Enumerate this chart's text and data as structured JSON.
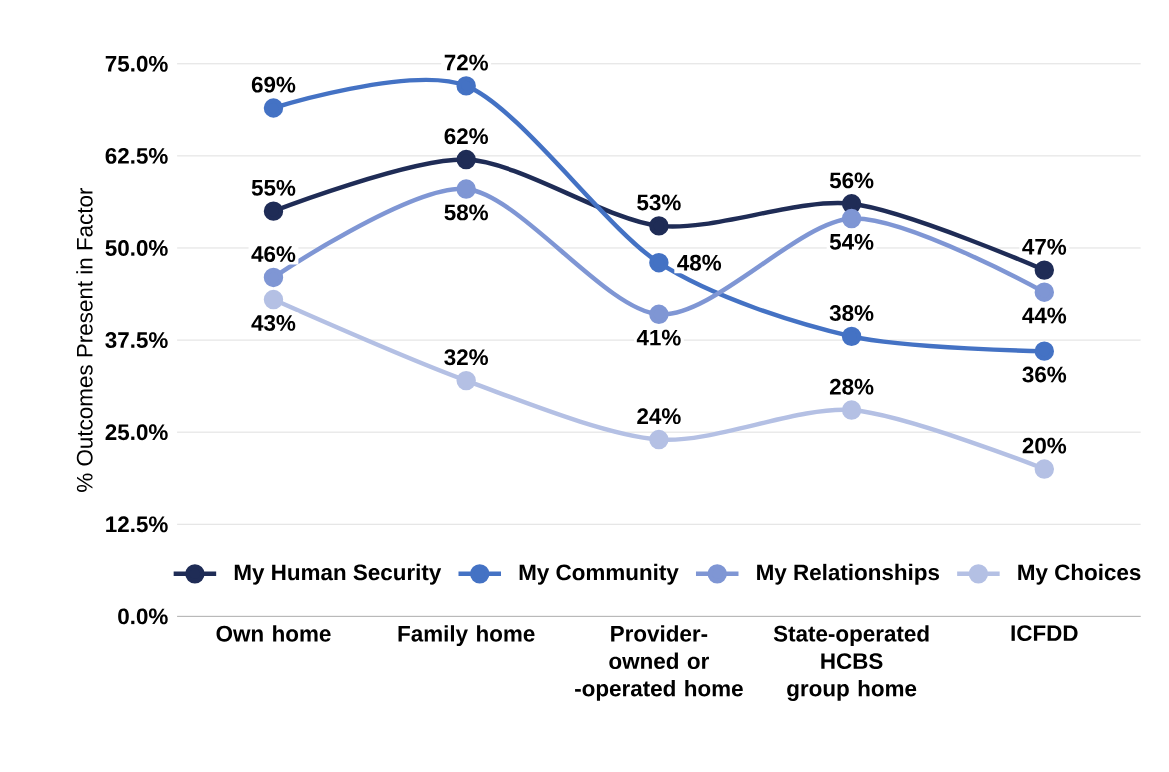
{
  "chart_data": {
    "type": "line",
    "ylabel": "% Outcomes Present in Factor",
    "categories": [
      "Own home",
      "Family home",
      "Provider-owned or -operated home",
      "State-operated HCBS group home",
      "ICFDD"
    ],
    "series": [
      {
        "name": "My Human Security",
        "color": "#1f2c56",
        "values": [
          55,
          62,
          53,
          56,
          47
        ],
        "value_labels": [
          "55%",
          "62%",
          "53%",
          "56%",
          "47%"
        ]
      },
      {
        "name": "My Community",
        "color": "#4472c4",
        "values": [
          69,
          72,
          48,
          38,
          36
        ],
        "value_labels": [
          "69%",
          "72%",
          "48%",
          "38%",
          "36%"
        ]
      },
      {
        "name": "My Relationships",
        "color": "#7f96d4",
        "values": [
          46,
          58,
          41,
          54,
          44
        ],
        "value_labels": [
          "46%",
          "58%",
          "41%",
          "54%",
          "44%"
        ]
      },
      {
        "name": "My Choices",
        "color": "#b4c0e4",
        "values": [
          43,
          32,
          24,
          28,
          20
        ],
        "value_labels": [
          "43%",
          "32%",
          "24%",
          "28%",
          "20%"
        ]
      }
    ],
    "ylim": [
      0,
      75
    ],
    "yticks": [
      {
        "value": 0,
        "label": "0.0%"
      },
      {
        "value": 12.5,
        "label": "12.5%"
      },
      {
        "value": 25,
        "label": "25.0%"
      },
      {
        "value": 37.5,
        "label": "37.5%"
      },
      {
        "value": 50,
        "label": "50.0%"
      },
      {
        "value": 62.5,
        "label": "62.5%"
      },
      {
        "value": 75,
        "label": "75.0%"
      }
    ],
    "grid": "y",
    "legend": "bottom",
    "marker": "circle",
    "line_style": "solid"
  }
}
